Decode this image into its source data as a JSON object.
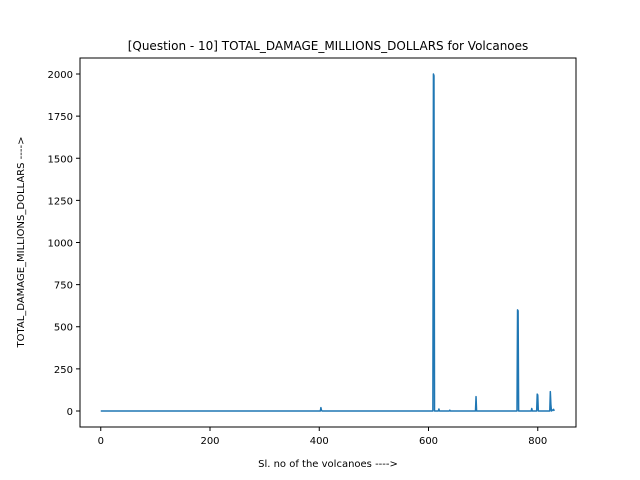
{
  "chart_data": {
    "type": "line",
    "title": "[Question - 10] TOTAL_DAMAGE_MILLIONS_DOLLARS for Volcanoes",
    "xlabel": "Sl. no of the volcanoes ---->",
    "ylabel": "TOTAL_DAMAGE_MILLIONS_DOLLARS ---->",
    "xlim": [
      -38,
      870
    ],
    "ylim": [
      -95,
      2095
    ],
    "xticks": [
      0,
      200,
      400,
      600,
      800
    ],
    "yticks": [
      0,
      250,
      500,
      750,
      1000,
      1250,
      1500,
      1750,
      2000
    ],
    "grid": false,
    "line_color": "#1f77b4",
    "series": [
      {
        "x": [
          0,
          402,
          403,
          404,
          405,
          580,
          608,
          609,
          610,
          611,
          618,
          619,
          620,
          638,
          639,
          640,
          686,
          687,
          688,
          762,
          763,
          764,
          765,
          788,
          789,
          790,
          798,
          799,
          800,
          801,
          822,
          823,
          824,
          825,
          829,
          830
        ],
        "y": [
          0,
          0,
          20,
          5,
          0,
          0,
          0,
          2000,
          1990,
          0,
          0,
          12,
          0,
          0,
          5,
          0,
          0,
          85,
          0,
          0,
          600,
          595,
          0,
          0,
          15,
          0,
          0,
          100,
          95,
          0,
          0,
          115,
          40,
          0,
          10,
          0
        ]
      }
    ]
  }
}
